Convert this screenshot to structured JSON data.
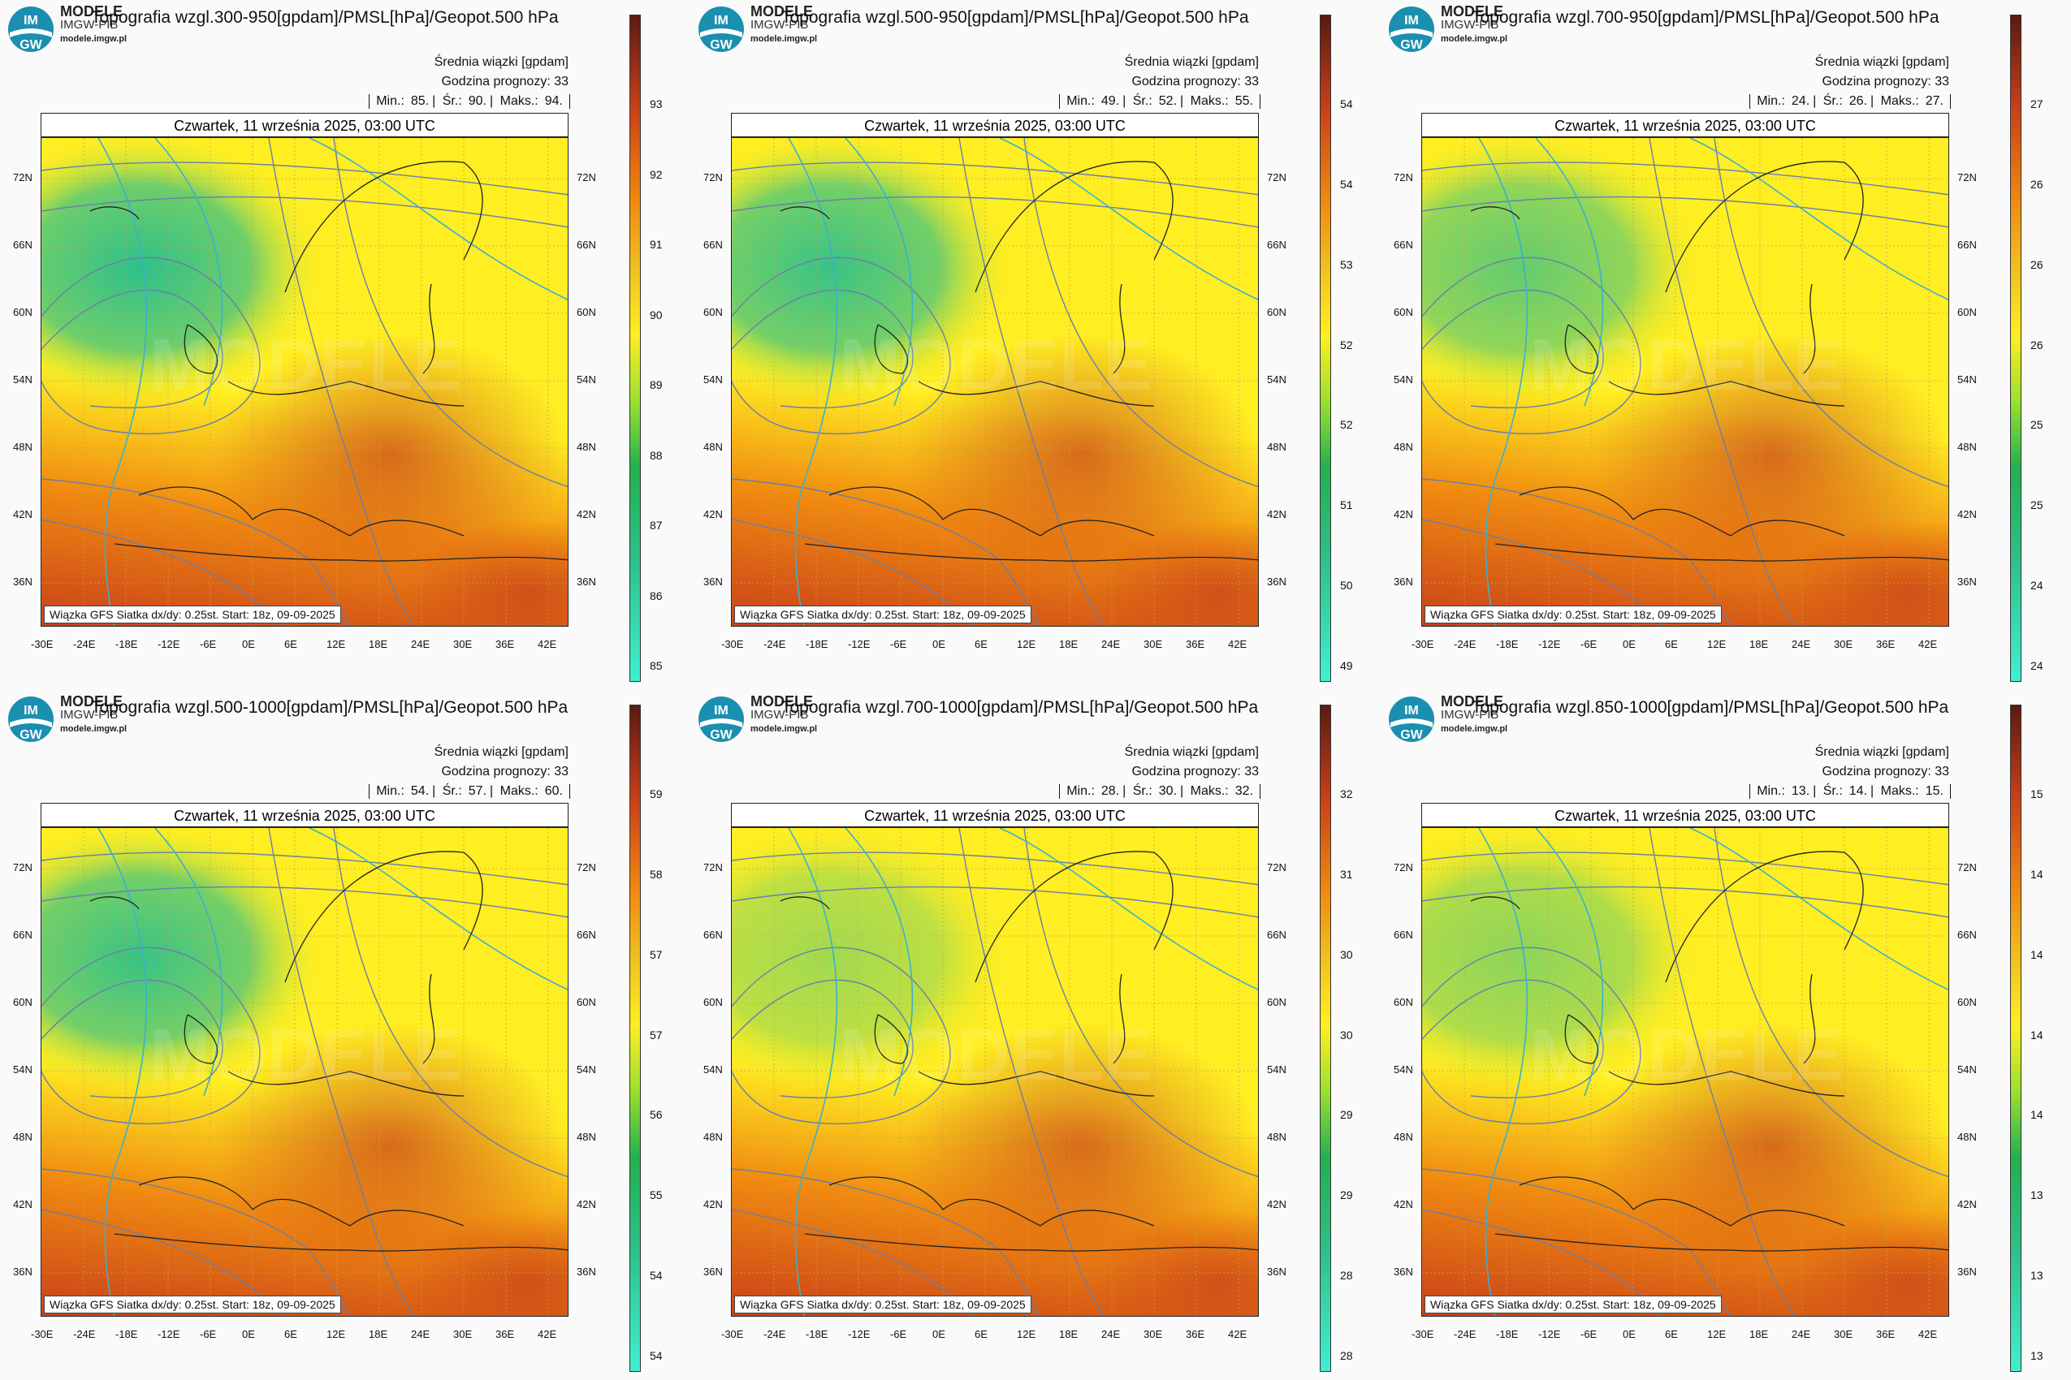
{
  "brand": {
    "line1": "MODELE",
    "line2": "IMGW-PIB",
    "url": "modele.imgw.pl",
    "logo_text": "IM GW"
  },
  "common": {
    "legend_title": "Średnia wiązki [gpdam]",
    "forecast_hour": "Godzina prognozy: 33",
    "date": "Czwartek, 11 września 2025, 03:00 UTC",
    "footer": "Wiązka GFS Siatka dx/dy: 0.25st. Start: 18z, 09-09-2025",
    "min_label": "Min.:",
    "avg_label": "Śr.:",
    "max_label": "Maks.:",
    "lat_ticks": [
      "72N",
      "66N",
      "60N",
      "54N",
      "48N",
      "42N",
      "36N"
    ],
    "lon_ticks": [
      "-30E",
      "-24E",
      "-18E",
      "-12E",
      "-6E",
      "0E",
      "6E",
      "12E",
      "18E",
      "24E",
      "30E",
      "36E",
      "42E"
    ]
  },
  "panels": [
    {
      "title": "Topografia wzgl.300-950[gpdam]/PMSL[hPa]/Geopot.500 hPa",
      "min": "85.",
      "avg": "90.",
      "max": "94.",
      "cbar": [
        "93",
        "92",
        "91",
        "90",
        "89",
        "88",
        "87",
        "86",
        "85"
      ]
    },
    {
      "title": "Topografia wzgl.500-950[gpdam]/PMSL[hPa]/Geopot.500 hPa",
      "min": "49.",
      "avg": "52.",
      "max": "55.",
      "cbar": [
        "54",
        "54",
        "53",
        "52",
        "52",
        "51",
        "50",
        "49"
      ]
    },
    {
      "title": "Topografia wzgl.700-950[gpdam]/PMSL[hPa]/Geopot.500 hPa",
      "min": "24.",
      "avg": "26.",
      "max": "27.",
      "cbar": [
        "27",
        "26",
        "26",
        "26",
        "25",
        "25",
        "24",
        "24"
      ]
    },
    {
      "title": "Topografia wzgl.500-1000[gpdam]/PMSL[hPa]/Geopot.500 hPa",
      "min": "54.",
      "avg": "57.",
      "max": "60.",
      "cbar": [
        "59",
        "58",
        "57",
        "57",
        "56",
        "55",
        "54",
        "54"
      ]
    },
    {
      "title": "Topografia wzgl.700-1000[gpdam]/PMSL[hPa]/Geopot.500 hPa",
      "min": "28.",
      "avg": "30.",
      "max": "32.",
      "cbar": [
        "32",
        "31",
        "30",
        "30",
        "29",
        "29",
        "28",
        "28"
      ]
    },
    {
      "title": "Topografia wzgl.850-1000[gpdam]/PMSL[hPa]/Geopot.500 hPa",
      "min": "13.",
      "avg": "14.",
      "max": "15.",
      "cbar": [
        "15",
        "14",
        "14",
        "14",
        "14",
        "13",
        "13",
        "13"
      ]
    }
  ],
  "colors": {
    "cold": "#2fc08a",
    "mid": "#ffee22",
    "warm": "#f08a10",
    "hot": "#c8401a",
    "isobar": "#6a7fa8",
    "geopot": "#3ab0d0"
  }
}
